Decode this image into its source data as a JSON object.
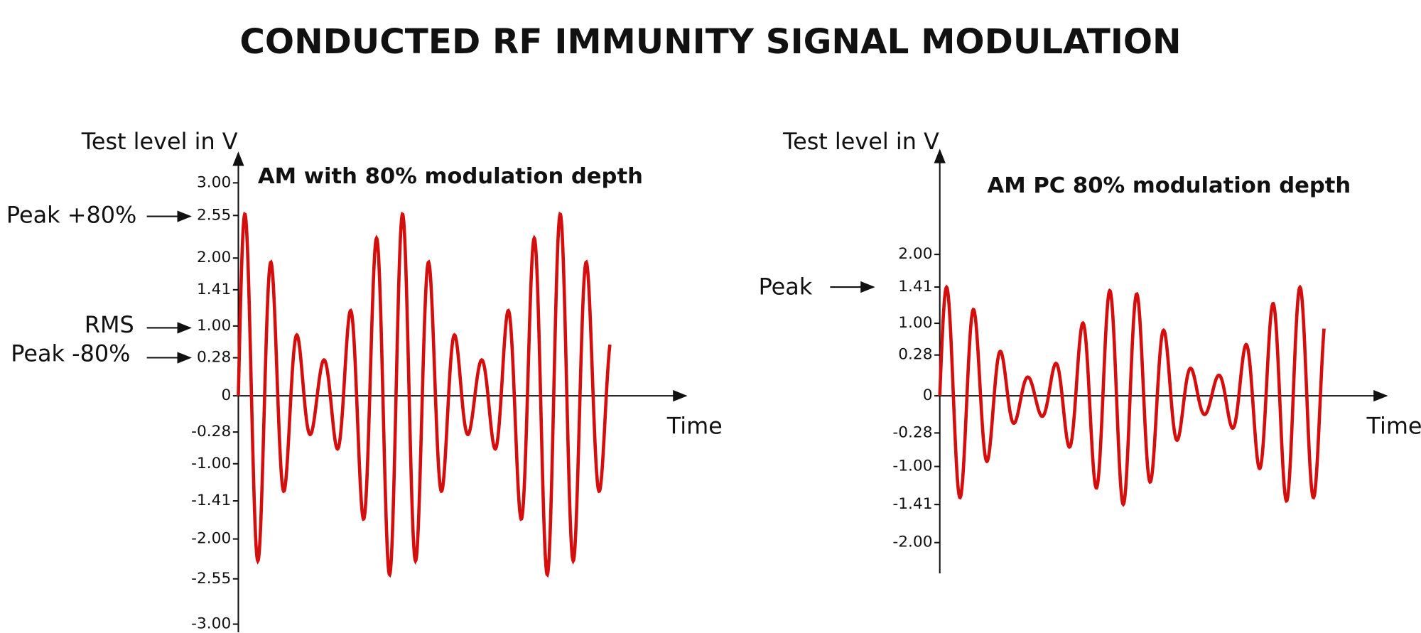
{
  "title": "CONDUCTED RF IMMUNITY SIGNAL MODULATION",
  "panels": [
    {
      "axis_label": "Test level in V",
      "subtitle": "AM with 80% modulation depth",
      "x_label": "Time",
      "ticks": [
        "3.00",
        "2.55",
        "2.00",
        "1.41",
        "1.00",
        "0.28",
        "0",
        "-0.28",
        "-1.00",
        "-1.41",
        "-2.00",
        "-2.55",
        "-3.00"
      ],
      "annotations": [
        "Peak +80%",
        "RMS",
        "Peak -80%"
      ]
    },
    {
      "axis_label": "Test level in V",
      "subtitle": "AM PC 80% modulation depth",
      "x_label": "Time",
      "ticks": [
        "2.00",
        "1.41",
        "1.00",
        "0.28",
        "0",
        "-0.28",
        "-1.00",
        "-1.41",
        "-2.00"
      ],
      "annotations": [
        "Peak"
      ]
    }
  ]
}
